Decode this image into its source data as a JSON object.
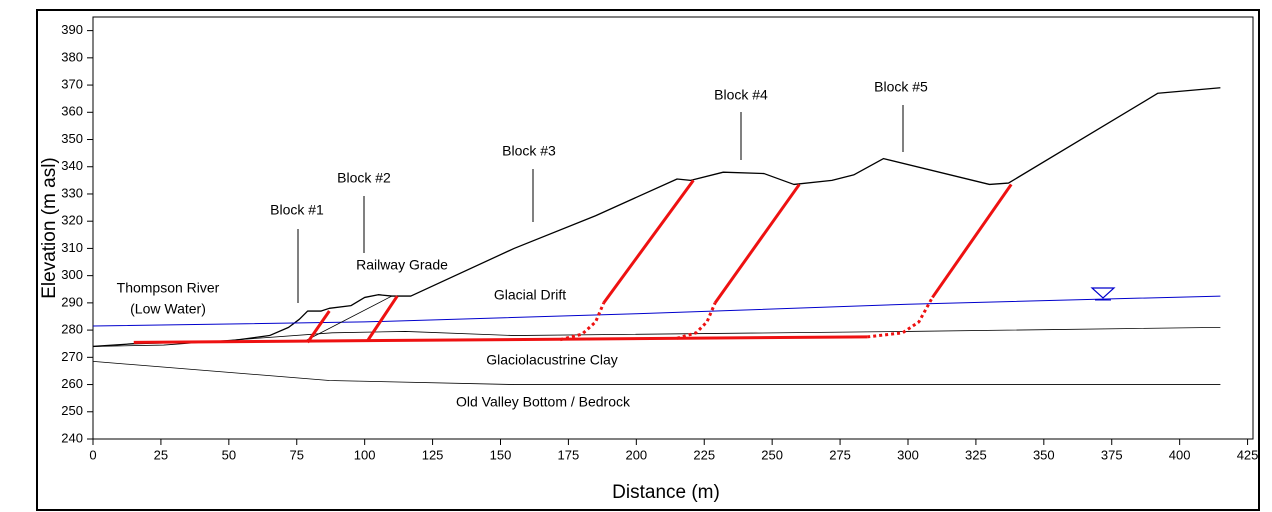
{
  "chart_data": {
    "type": "line",
    "xlabel": "Distance (m)",
    "ylabel": "Elevation (m asl)",
    "xlim": [
      0,
      427
    ],
    "ylim": [
      240,
      395
    ],
    "xticks": [
      0,
      25,
      50,
      75,
      100,
      125,
      150,
      175,
      200,
      225,
      250,
      275,
      300,
      325,
      350,
      375,
      400,
      425
    ],
    "yticks": [
      240,
      250,
      260,
      270,
      280,
      290,
      300,
      310,
      320,
      330,
      340,
      350,
      360,
      370,
      380,
      390
    ],
    "series": [
      {
        "color": "#000000",
        "width": 1.3,
        "x": [
          0,
          15,
          50,
          65,
          72,
          76,
          79,
          84,
          87,
          95,
          100,
          105,
          110,
          117,
          155,
          185,
          215,
          220,
          232,
          247,
          258,
          272,
          280,
          291,
          330,
          337,
          392,
          415
        ],
        "values": [
          274,
          275,
          276,
          278,
          281,
          284,
          287,
          287,
          288,
          289,
          292,
          293,
          292.5,
          292.5,
          310,
          322,
          335.5,
          335,
          338,
          337.5,
          333.5,
          335,
          337,
          343,
          333.5,
          334,
          367,
          369
        ]
      },
      {
        "color": "#0000cc",
        "width": 1,
        "x": [
          0,
          100,
          200,
          300,
          415
        ],
        "values": [
          281.5,
          283,
          286,
          289.5,
          292.5
        ]
      },
      {
        "color": "#000000",
        "width": 0.8,
        "x": [
          0,
          26,
          88,
          115,
          155,
          300,
          415
        ],
        "values": [
          274,
          274.5,
          279,
          279.5,
          278,
          279.5,
          281
        ]
      },
      {
        "color": "#000000",
        "width": 0.8,
        "x": [
          0,
          87,
          155,
          415
        ],
        "values": [
          268.5,
          261.5,
          260,
          260
        ]
      },
      {
        "color": "#000000",
        "width": 0.8,
        "x": [
          78,
          110
        ],
        "values": [
          276,
          292.5
        ]
      },
      {
        "color": "#ee1111",
        "width": 3,
        "x": [
          15,
          285
        ],
        "values": [
          275.5,
          277.5
        ]
      },
      {
        "color": "#ee1111",
        "width": 3,
        "x": [
          79,
          87
        ],
        "values": [
          275.5,
          287
        ]
      },
      {
        "color": "#ee1111",
        "width": 3,
        "x": [
          101,
          112
        ],
        "values": [
          276,
          292.5
        ]
      },
      {
        "color": "#ee1111",
        "width": 3,
        "x": [
          188,
          221
        ],
        "values": [
          290,
          335
        ]
      },
      {
        "color": "#ee1111",
        "width": 3,
        "x": [
          229,
          260
        ],
        "values": [
          290,
          333.5
        ]
      },
      {
        "color": "#ee1111",
        "width": 3,
        "x": [
          309,
          338
        ],
        "values": [
          292,
          333.5
        ]
      },
      {
        "color": "#ee1111",
        "width": 3,
        "dash": true,
        "x": [
          172,
          180,
          185,
          188
        ],
        "values": [
          276.5,
          278.5,
          283,
          290
        ]
      },
      {
        "color": "#ee1111",
        "width": 3,
        "dash": true,
        "x": [
          215,
          222,
          226,
          229
        ],
        "values": [
          277,
          279,
          283,
          290
        ]
      },
      {
        "color": "#ee1111",
        "width": 3,
        "dash": true,
        "x": [
          285,
          298,
          304,
          309
        ],
        "values": [
          277.5,
          279,
          283,
          292
        ]
      }
    ],
    "annotations": [
      "Block #1",
      "Block #2",
      "Block #3",
      "Block #4",
      "Block #5",
      "Railway Grade",
      "Thompson River",
      "(Low Water)",
      "Glacial Drift",
      "Glaciolacustrine Clay",
      "Old Valley Bottom / Bedrock"
    ]
  }
}
